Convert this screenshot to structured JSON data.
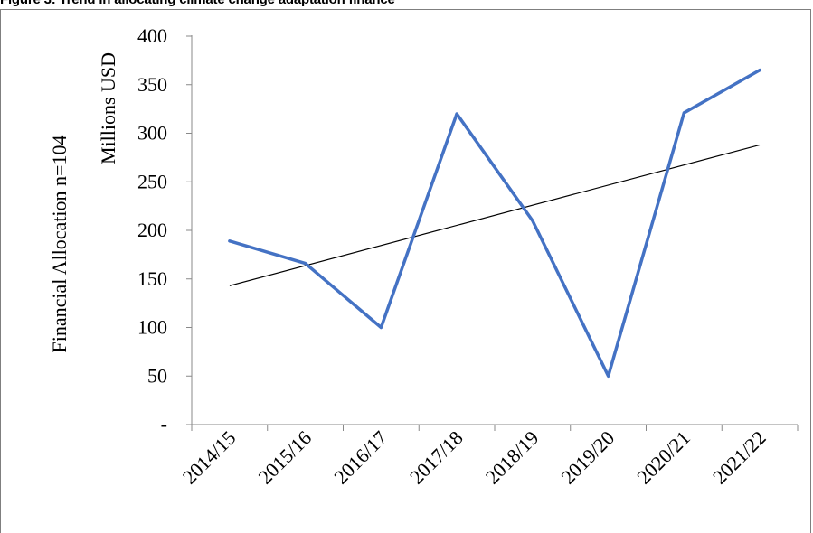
{
  "figure_title": "Figure 3: Trend in allocating climate change adaptation finance",
  "colors": {
    "series": "#4472C4",
    "trend": "#000000",
    "axis": "#898989",
    "frame": "#7f7f7f"
  },
  "chart_data": {
    "type": "line",
    "title": "",
    "ylabel_outer": "Financial Allocation n=104",
    "ylabel": "Millions USD",
    "xlabel": "",
    "categories": [
      "2014/15",
      "2015/16",
      "2016/17",
      "2017/18",
      "2018/19",
      "2019/20",
      "2020/21",
      "2021/22"
    ],
    "ylim": [
      0,
      400
    ],
    "yticks": [
      0,
      50,
      100,
      150,
      200,
      250,
      300,
      350,
      400
    ],
    "ytick_labels": [
      "-",
      "50",
      "100",
      "150",
      "200",
      "250",
      "300",
      "350",
      "400"
    ],
    "grid": false,
    "legend": "none",
    "series": [
      {
        "values": [
          189,
          166,
          100,
          320,
          210,
          50,
          321,
          365
        ]
      }
    ],
    "trendline": {
      "type": "linear",
      "start": 143,
      "end": 288
    }
  }
}
